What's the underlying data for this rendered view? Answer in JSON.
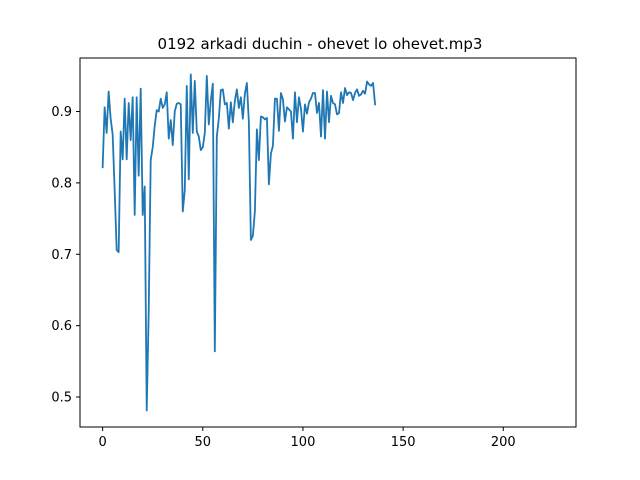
{
  "chart_data": {
    "type": "line",
    "title": "0192 arkadi duchin - ohevet lo ohevet.mp3",
    "xlabel": "",
    "ylabel": "",
    "xlim": [
      -11.3,
      236.3
    ],
    "ylim": [
      0.458,
      0.975
    ],
    "x_ticks": [
      0,
      50,
      100,
      150,
      200
    ],
    "y_ticks": [
      0.5,
      0.6,
      0.7,
      0.8,
      0.9
    ],
    "grid": false,
    "line_color": "#1f77b4",
    "series": [
      {
        "values": [
          0.822,
          0.906,
          0.87,
          0.928,
          0.89,
          0.868,
          0.79,
          0.706,
          0.703,
          0.872,
          0.833,
          0.918,
          0.833,
          0.912,
          0.86,
          0.92,
          0.755,
          0.92,
          0.81,
          0.932,
          0.755,
          0.795,
          0.481,
          0.62,
          0.832,
          0.85,
          0.88,
          0.902,
          0.9,
          0.918,
          0.905,
          0.91,
          0.927,
          0.862,
          0.888,
          0.853,
          0.9,
          0.911,
          0.912,
          0.91,
          0.76,
          0.79,
          0.936,
          0.805,
          0.952,
          0.87,
          0.943,
          0.872,
          0.865,
          0.846,
          0.85,
          0.87,
          0.95,
          0.882,
          0.915,
          0.939,
          0.564,
          0.865,
          0.89,
          0.93,
          0.931,
          0.91,
          0.912,
          0.876,
          0.913,
          0.885,
          0.915,
          0.931,
          0.905,
          0.92,
          0.89,
          0.925,
          0.94,
          0.885,
          0.72,
          0.726,
          0.76,
          0.875,
          0.832,
          0.893,
          0.892,
          0.889,
          0.891,
          0.798,
          0.841,
          0.852,
          0.918,
          0.918,
          0.873,
          0.926,
          0.917,
          0.886,
          0.906,
          0.903,
          0.9,
          0.862,
          0.927,
          0.885,
          0.92,
          0.904,
          0.872,
          0.91,
          0.897,
          0.913,
          0.918,
          0.926,
          0.926,
          0.898,
          0.912,
          0.865,
          0.93,
          0.862,
          0.928,
          0.885,
          0.922,
          0.912,
          0.91,
          0.896,
          0.898,
          0.927,
          0.912,
          0.933,
          0.923,
          0.927,
          0.926,
          0.916,
          0.926,
          0.931,
          0.922,
          0.924,
          0.929,
          0.925,
          0.942,
          0.938,
          0.936,
          0.94,
          0.91
        ]
      }
    ]
  }
}
